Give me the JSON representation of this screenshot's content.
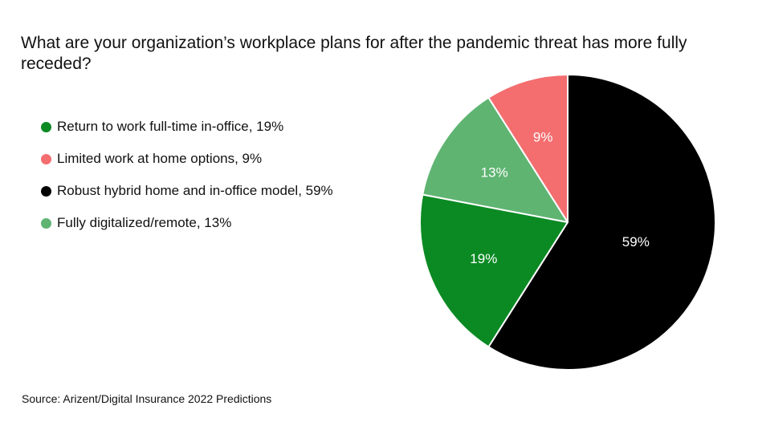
{
  "chart_data": {
    "type": "pie",
    "title": "What are your organization’s workplace plans for after the pandemic threat has more fully receded?",
    "source": "Source: Arizent/Digital Insurance 2022 Predictions",
    "legend_position": "left",
    "slices": [
      {
        "legend": "Robust hybrid home and in-office model, 59%",
        "value": 59,
        "label": "59%",
        "color": "#000000"
      },
      {
        "legend": "Return to work full-time in-office, 19%",
        "value": 19,
        "label": "19%",
        "color": "#0b8a23"
      },
      {
        "legend": "Fully digitalized/remote, 13%",
        "value": 13,
        "label": "13%",
        "color": "#5fb472"
      },
      {
        "legend": "Limited work at home options, 9%",
        "value": 9,
        "label": "9%",
        "color": "#f46d6f"
      }
    ],
    "legend_order": [
      1,
      3,
      0,
      2
    ]
  }
}
